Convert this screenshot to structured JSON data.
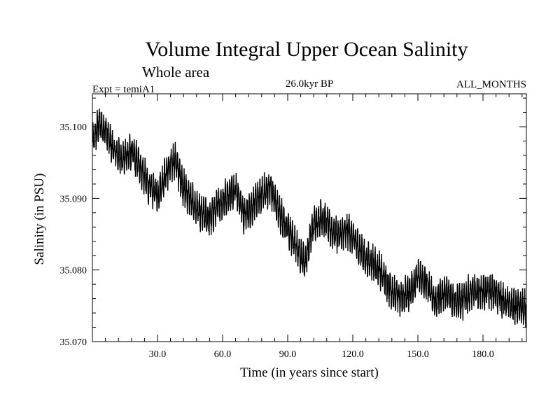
{
  "chart_data": {
    "type": "line",
    "title": "Volume Integral Upper Ocean Salinity",
    "subtitle": "Whole area",
    "experiment": "Expt = temiA1",
    "period": "26.0kyr BP",
    "months": "ALL_MONTHS",
    "xlabel": "Time (in years since start)",
    "ylabel": "Salinity (in PSU)",
    "xlim": [
      0,
      200
    ],
    "ylim": [
      35.07,
      35.1046
    ],
    "x_ticks": [
      30,
      60,
      90,
      120,
      150,
      180
    ],
    "x_tick_labels": [
      "30.0",
      "60.0",
      "90.0",
      "120.0",
      "150.0",
      "180.0"
    ],
    "y_ticks": [
      35.07,
      35.08,
      35.09,
      35.1
    ],
    "y_tick_labels": [
      "35.070",
      "35.080",
      "35.090",
      "35.100"
    ],
    "x_minor_step": 6,
    "y_minor_step": 0.002,
    "series": [
      {
        "name": "Salinity",
        "color": "#000000",
        "monthly_amplitude_psu": 0.0018,
        "trend_x": [
          0,
          3,
          6,
          10,
          14,
          18,
          22,
          26,
          30,
          34,
          38,
          42,
          46,
          50,
          54,
          58,
          62,
          66,
          70,
          74,
          78,
          82,
          86,
          90,
          94,
          98,
          102,
          106,
          110,
          114,
          118,
          122,
          126,
          130,
          134,
          138,
          142,
          146,
          150,
          154,
          158,
          162,
          166,
          170,
          174,
          178,
          182,
          186,
          190,
          194,
          200
        ],
        "trend_y": [
          35.0975,
          35.1005,
          35.0995,
          35.0965,
          35.0955,
          35.0965,
          35.0945,
          35.0915,
          35.0905,
          35.0935,
          35.0955,
          35.0915,
          35.0895,
          35.0878,
          35.0872,
          35.089,
          35.0903,
          35.0915,
          35.0875,
          35.089,
          35.0905,
          35.0915,
          35.088,
          35.0858,
          35.0832,
          35.081,
          35.0865,
          35.0875,
          35.0855,
          35.0848,
          35.0855,
          35.0835,
          35.0815,
          35.081,
          35.079,
          35.077,
          35.076,
          35.077,
          35.079,
          35.078,
          35.0755,
          35.077,
          35.076,
          35.0755,
          35.0768,
          35.077,
          35.077,
          35.0768,
          35.0755,
          35.075,
          35.0745
        ]
      }
    ]
  }
}
